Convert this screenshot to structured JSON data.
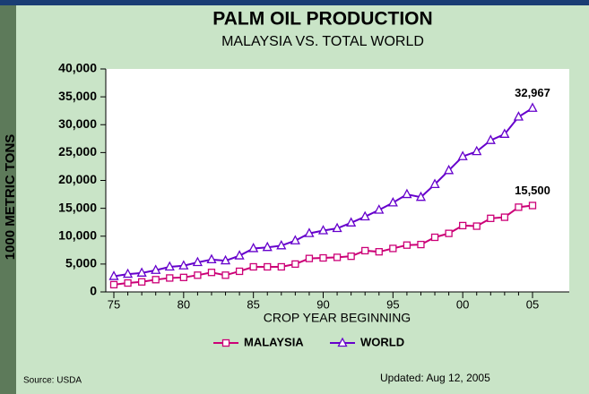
{
  "chart_data": {
    "type": "line",
    "title": "PALM OIL PRODUCTION",
    "subtitle": "MALAYSIA VS. TOTAL WORLD",
    "x_label": "CROP YEAR BEGINNING",
    "y_label": "1000 METRIC TONS",
    "categories": [
      "75",
      null,
      null,
      null,
      null,
      "80",
      null,
      null,
      null,
      null,
      "85",
      null,
      null,
      null,
      null,
      "90",
      null,
      null,
      null,
      null,
      "95",
      null,
      null,
      null,
      null,
      "00",
      null,
      null,
      null,
      null,
      "05"
    ],
    "series": [
      {
        "name": "MALAYSIA",
        "color": "#cc0077",
        "marker": "square",
        "values": [
          1300,
          1600,
          1800,
          2200,
          2500,
          2600,
          3000,
          3500,
          3000,
          3700,
          4500,
          4500,
          4500,
          5000,
          6000,
          6100,
          6200,
          6400,
          7400,
          7200,
          7800,
          8400,
          8500,
          9800,
          10500,
          11900,
          11800,
          13200,
          13400,
          15200,
          15500
        ],
        "value_labels": [
          null,
          null,
          null,
          null,
          null,
          null,
          null,
          null,
          null,
          null,
          null,
          null,
          null,
          null,
          null,
          null,
          null,
          null,
          null,
          null,
          null,
          null,
          null,
          null,
          null,
          null,
          null,
          null,
          null,
          null,
          "15,500"
        ]
      },
      {
        "name": "WORLD",
        "color": "#6600cc",
        "marker": "triangle",
        "values": [
          2800,
          3200,
          3400,
          3900,
          4500,
          4700,
          5300,
          5800,
          5600,
          6500,
          7800,
          8000,
          8300,
          9200,
          10500,
          11000,
          11400,
          12400,
          13500,
          14700,
          16000,
          17500,
          17000,
          19300,
          21800,
          24300,
          25200,
          27200,
          28300,
          31400,
          32967
        ],
        "value_labels": [
          null,
          null,
          null,
          null,
          null,
          null,
          null,
          null,
          null,
          null,
          null,
          null,
          null,
          null,
          null,
          null,
          null,
          null,
          null,
          null,
          null,
          null,
          null,
          null,
          null,
          null,
          null,
          null,
          null,
          null,
          "32,967"
        ]
      }
    ],
    "ylim": [
      0,
      40000
    ],
    "yticks": [
      0,
      {
        "value": 5000,
        "label": "5,000"
      },
      {
        "value": 10000,
        "label": "10,000"
      },
      {
        "value": 15000,
        "label": "15,000"
      },
      {
        "value": 20000,
        "label": "20,000"
      },
      {
        "value": 25000,
        "label": "25,000"
      },
      {
        "value": 30000,
        "label": "30,000"
      },
      {
        "value": 35000,
        "label": "35,000"
      },
      {
        "value": 40000,
        "label": "40,000"
      }
    ],
    "source": "Source: USDA",
    "updated": "Updated: Aug 12, 2005"
  }
}
